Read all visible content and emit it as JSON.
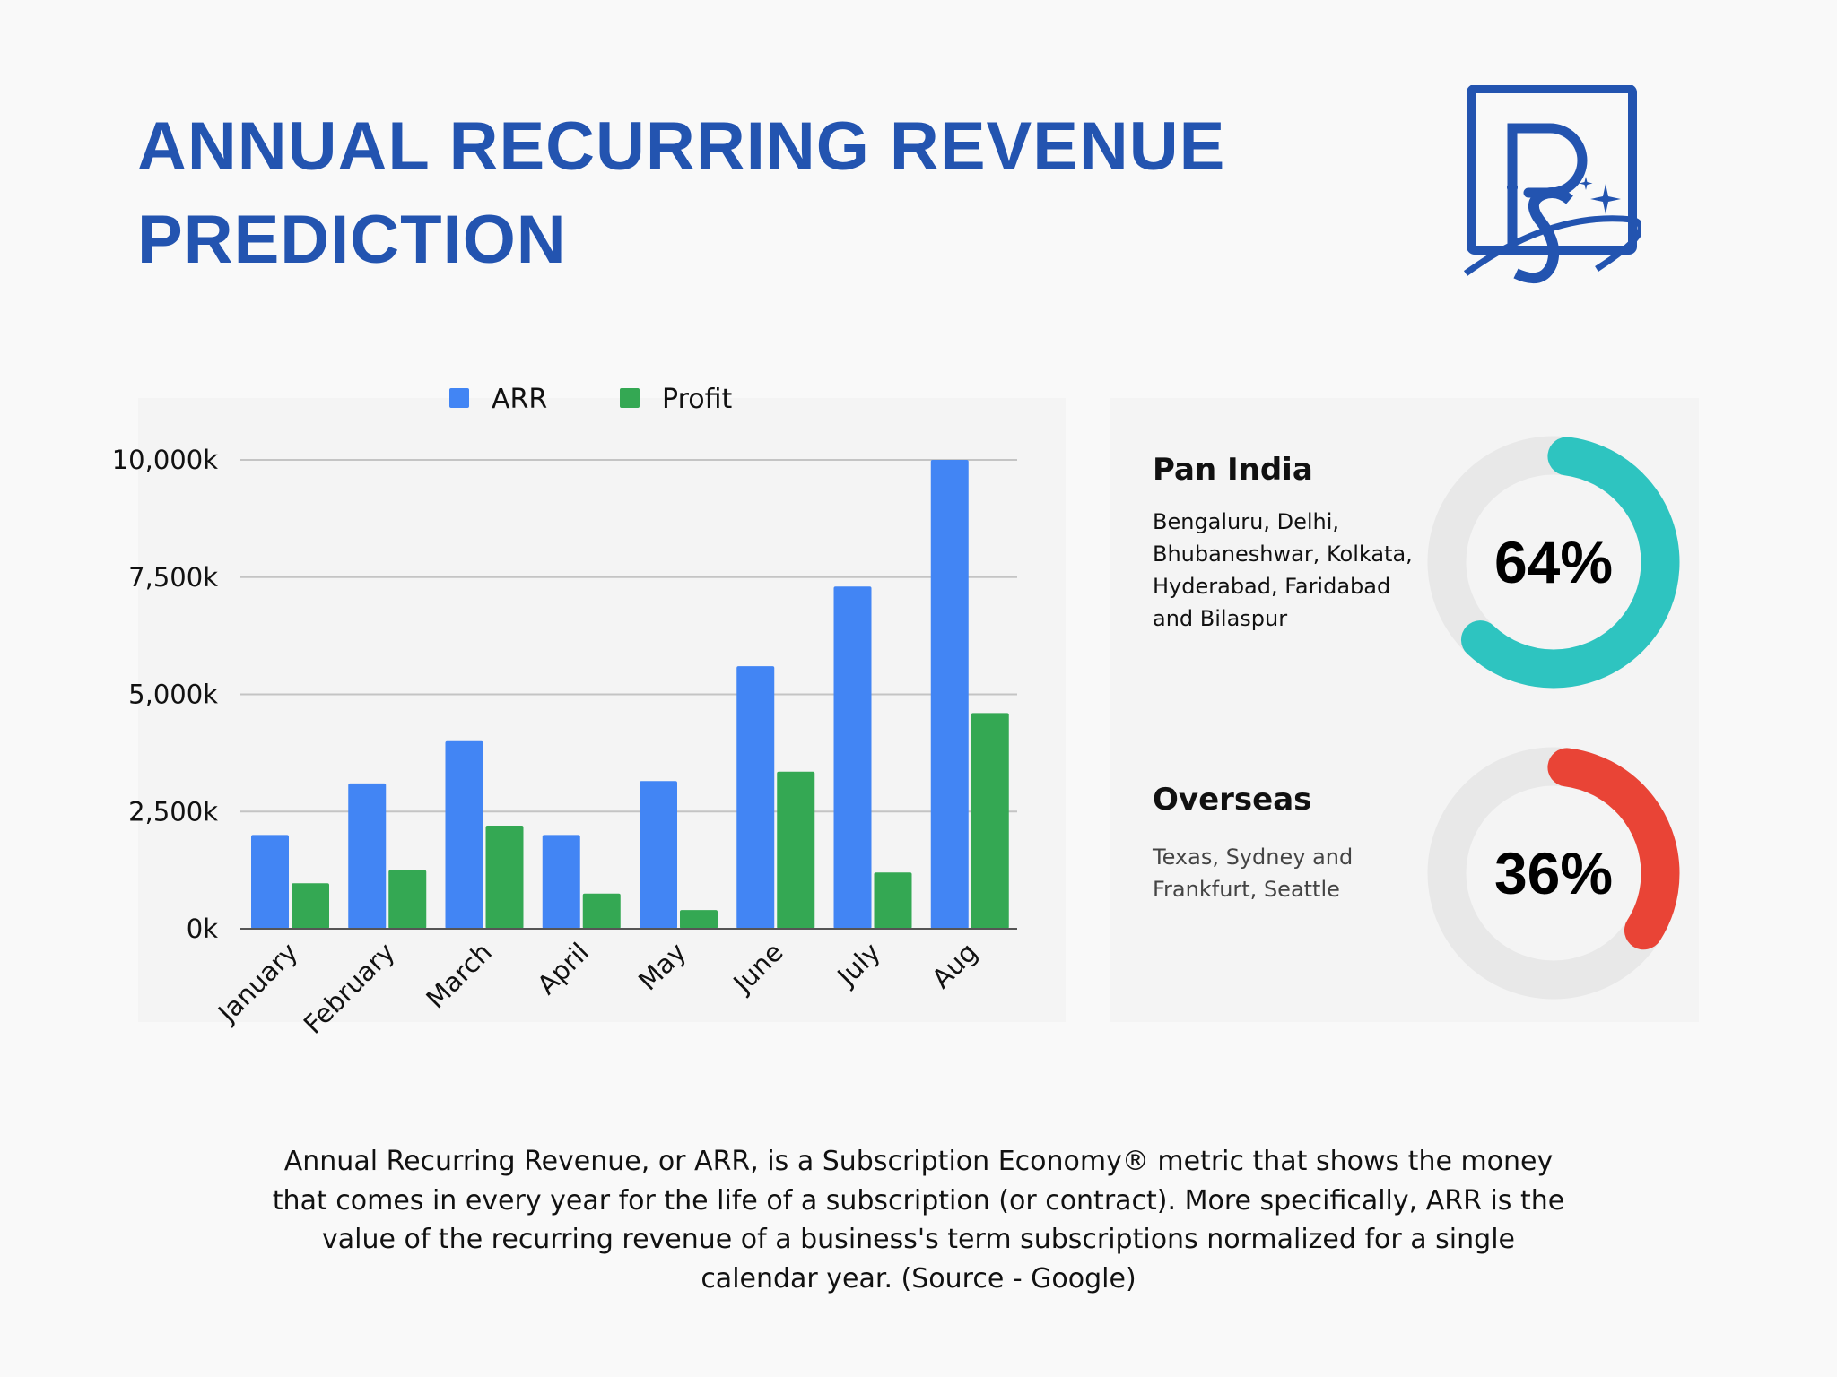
{
  "title": "ANNUAL RECURRING REVENUE PREDICTION",
  "logo": {
    "text": "PS",
    "color": "#2354b0"
  },
  "chart_data": {
    "type": "bar",
    "title": "",
    "xlabel": "",
    "ylabel": "",
    "categories": [
      "January",
      "February",
      "March",
      "April",
      "May",
      "June",
      "July",
      "Aug"
    ],
    "series": [
      {
        "name": "ARR",
        "color": "#4285f4",
        "values": [
          2000,
          3100,
          4000,
          2000,
          3150,
          5600,
          7300,
          10000
        ]
      },
      {
        "name": "Profit",
        "color": "#34a853",
        "values": [
          970,
          1250,
          2200,
          750,
          400,
          3350,
          1200,
          4600
        ]
      }
    ],
    "ylim": [
      0,
      10000
    ],
    "yticks": [
      0,
      2500,
      5000,
      7500,
      10000
    ],
    "ytick_labels": [
      "0k",
      "2,500k",
      "5,000k",
      "7,500k",
      "10,000k"
    ],
    "grid": true,
    "legend": "top"
  },
  "regions": [
    {
      "name": "Pan India",
      "description": "Bengaluru, Delhi, Bhubaneshwar, Kolkata, Hyderabad, Faridabad and Bilaspur",
      "percent_label": "64%",
      "percent": 64,
      "color": "#2ec4c0"
    },
    {
      "name": "Overseas",
      "description": "Texas, Sydney and Frankfurt, Seattle",
      "percent_label": "36%",
      "percent": 36,
      "color": "#e94436"
    }
  ],
  "footer": "Annual Recurring Revenue, or ARR, is a Subscription Economy® metric that shows the money that comes in every year for the life of a subscription (or contract). More specifically, ARR is the value of the recurring revenue of a business's term subscriptions normalized for a single calendar year. (Source - Google)"
}
